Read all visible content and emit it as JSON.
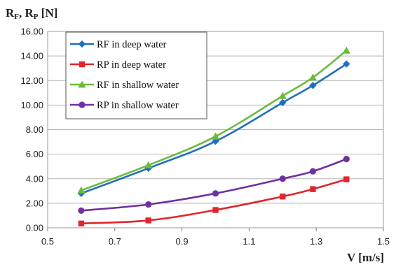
{
  "chart_data": {
    "type": "line",
    "y_axis_title": {
      "main": "R",
      "sub1": "F",
      "sep": ", R",
      "sub2": "P",
      "unit": " [N]"
    },
    "xlabel": "V [m/s]",
    "xlim": [
      0.5,
      1.5
    ],
    "ylim": [
      0,
      16
    ],
    "x_ticks": [
      "0.5",
      "0.7",
      "0.9",
      "1.1",
      "1.3",
      "1.5"
    ],
    "y_ticks": [
      "0.00",
      "2.00",
      "4.00",
      "6.00",
      "8.00",
      "10.00",
      "12.00",
      "14.00",
      "16.00"
    ],
    "grid": "horizontal",
    "legend_placement": "top-left",
    "x": [
      0.6,
      0.8,
      1.0,
      1.2,
      1.29,
      1.39
    ],
    "series": [
      {
        "name": "RF in deep water",
        "color": "#1F6FC0",
        "marker": "diamond",
        "values": [
          2.8,
          4.85,
          7.05,
          10.2,
          11.6,
          13.35
        ]
      },
      {
        "name": "RP in deep water",
        "color": "#E0262C",
        "marker": "square",
        "values": [
          0.35,
          0.6,
          1.45,
          2.55,
          3.15,
          3.95
        ]
      },
      {
        "name": "RF in shallow water",
        "color": "#6CBB3C",
        "marker": "triangle",
        "values": [
          3.05,
          5.1,
          7.45,
          10.75,
          12.25,
          14.45
        ]
      },
      {
        "name": "RP in shallow water",
        "color": "#7030A0",
        "marker": "circle",
        "values": [
          1.4,
          1.9,
          2.8,
          4.0,
          4.6,
          5.6
        ]
      }
    ]
  }
}
